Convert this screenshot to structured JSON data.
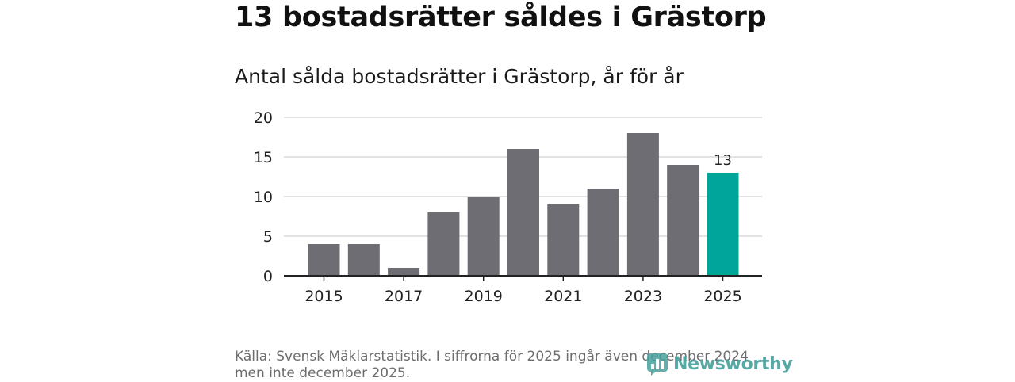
{
  "header": {
    "title": "13 bostadsrätter såldes i Grästorp",
    "subtitle": "Antal sålda bostadsrätter i Grästorp, år för år"
  },
  "chart_data": {
    "type": "bar",
    "title": "Antal sålda bostadsrätter i Grästorp, år för år",
    "categories": [
      "2015",
      "2016",
      "2017",
      "2018",
      "2019",
      "2020",
      "2021",
      "2022",
      "2023",
      "2024",
      "2025"
    ],
    "values": [
      4,
      4,
      1,
      8,
      10,
      16,
      9,
      11,
      18,
      14,
      13
    ],
    "x_tick_labels": [
      "2015",
      "2017",
      "2019",
      "2021",
      "2023",
      "2025"
    ],
    "y_ticks": [
      0,
      5,
      10,
      15,
      20
    ],
    "ylim": [
      0,
      20
    ],
    "xlabel": "",
    "ylabel": "",
    "grid": true,
    "highlight_category": "2025",
    "highlight_label": "13",
    "colors": {
      "bar": "#6e6d73",
      "highlight": "#00a59a",
      "grid": "#d9d9d9",
      "axis": "#222222"
    }
  },
  "footer": {
    "source": "Källa: Svensk Mäklarstatistik. I siffrorna för 2025 ingår även december 2024 men inte december 2025.",
    "logo_text": "Newsworthy",
    "logo_icon": "bar-chart-logo-icon"
  }
}
